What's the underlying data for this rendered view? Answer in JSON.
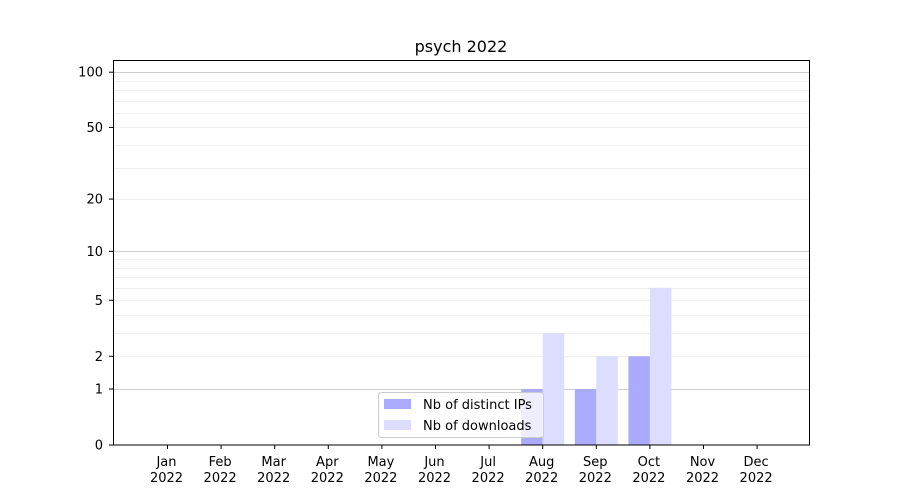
{
  "chart_data": {
    "type": "bar",
    "title": "psych 2022",
    "xlabel": "",
    "ylabel": "",
    "yscale": "symlog",
    "ylim": [
      0,
      116
    ],
    "grid": true,
    "legend_position": "bottom-center",
    "categories": [
      "Jan\n2022",
      "Feb\n2022",
      "Mar\n2022",
      "Apr\n2022",
      "May\n2022",
      "Jun\n2022",
      "Jul\n2022",
      "Aug\n2022",
      "Sep\n2022",
      "Oct\n2022",
      "Nov\n2022",
      "Dec\n2022"
    ],
    "yticks": [
      0,
      1,
      2,
      5,
      10,
      20,
      50,
      100
    ],
    "ytick_labels": [
      "0",
      "1",
      "2",
      "5",
      "10",
      "20",
      "50",
      "100"
    ],
    "series": [
      {
        "name": "Nb of distinct IPs",
        "color": "#aaaaff",
        "values": [
          0,
          0,
          0,
          0,
          0,
          0,
          0,
          1,
          1,
          2,
          0,
          0
        ]
      },
      {
        "name": "Nb of downloads",
        "color": "#ddddff",
        "values": [
          0,
          0,
          0,
          0,
          0,
          0,
          0,
          3,
          2,
          6,
          0,
          0
        ]
      }
    ]
  }
}
